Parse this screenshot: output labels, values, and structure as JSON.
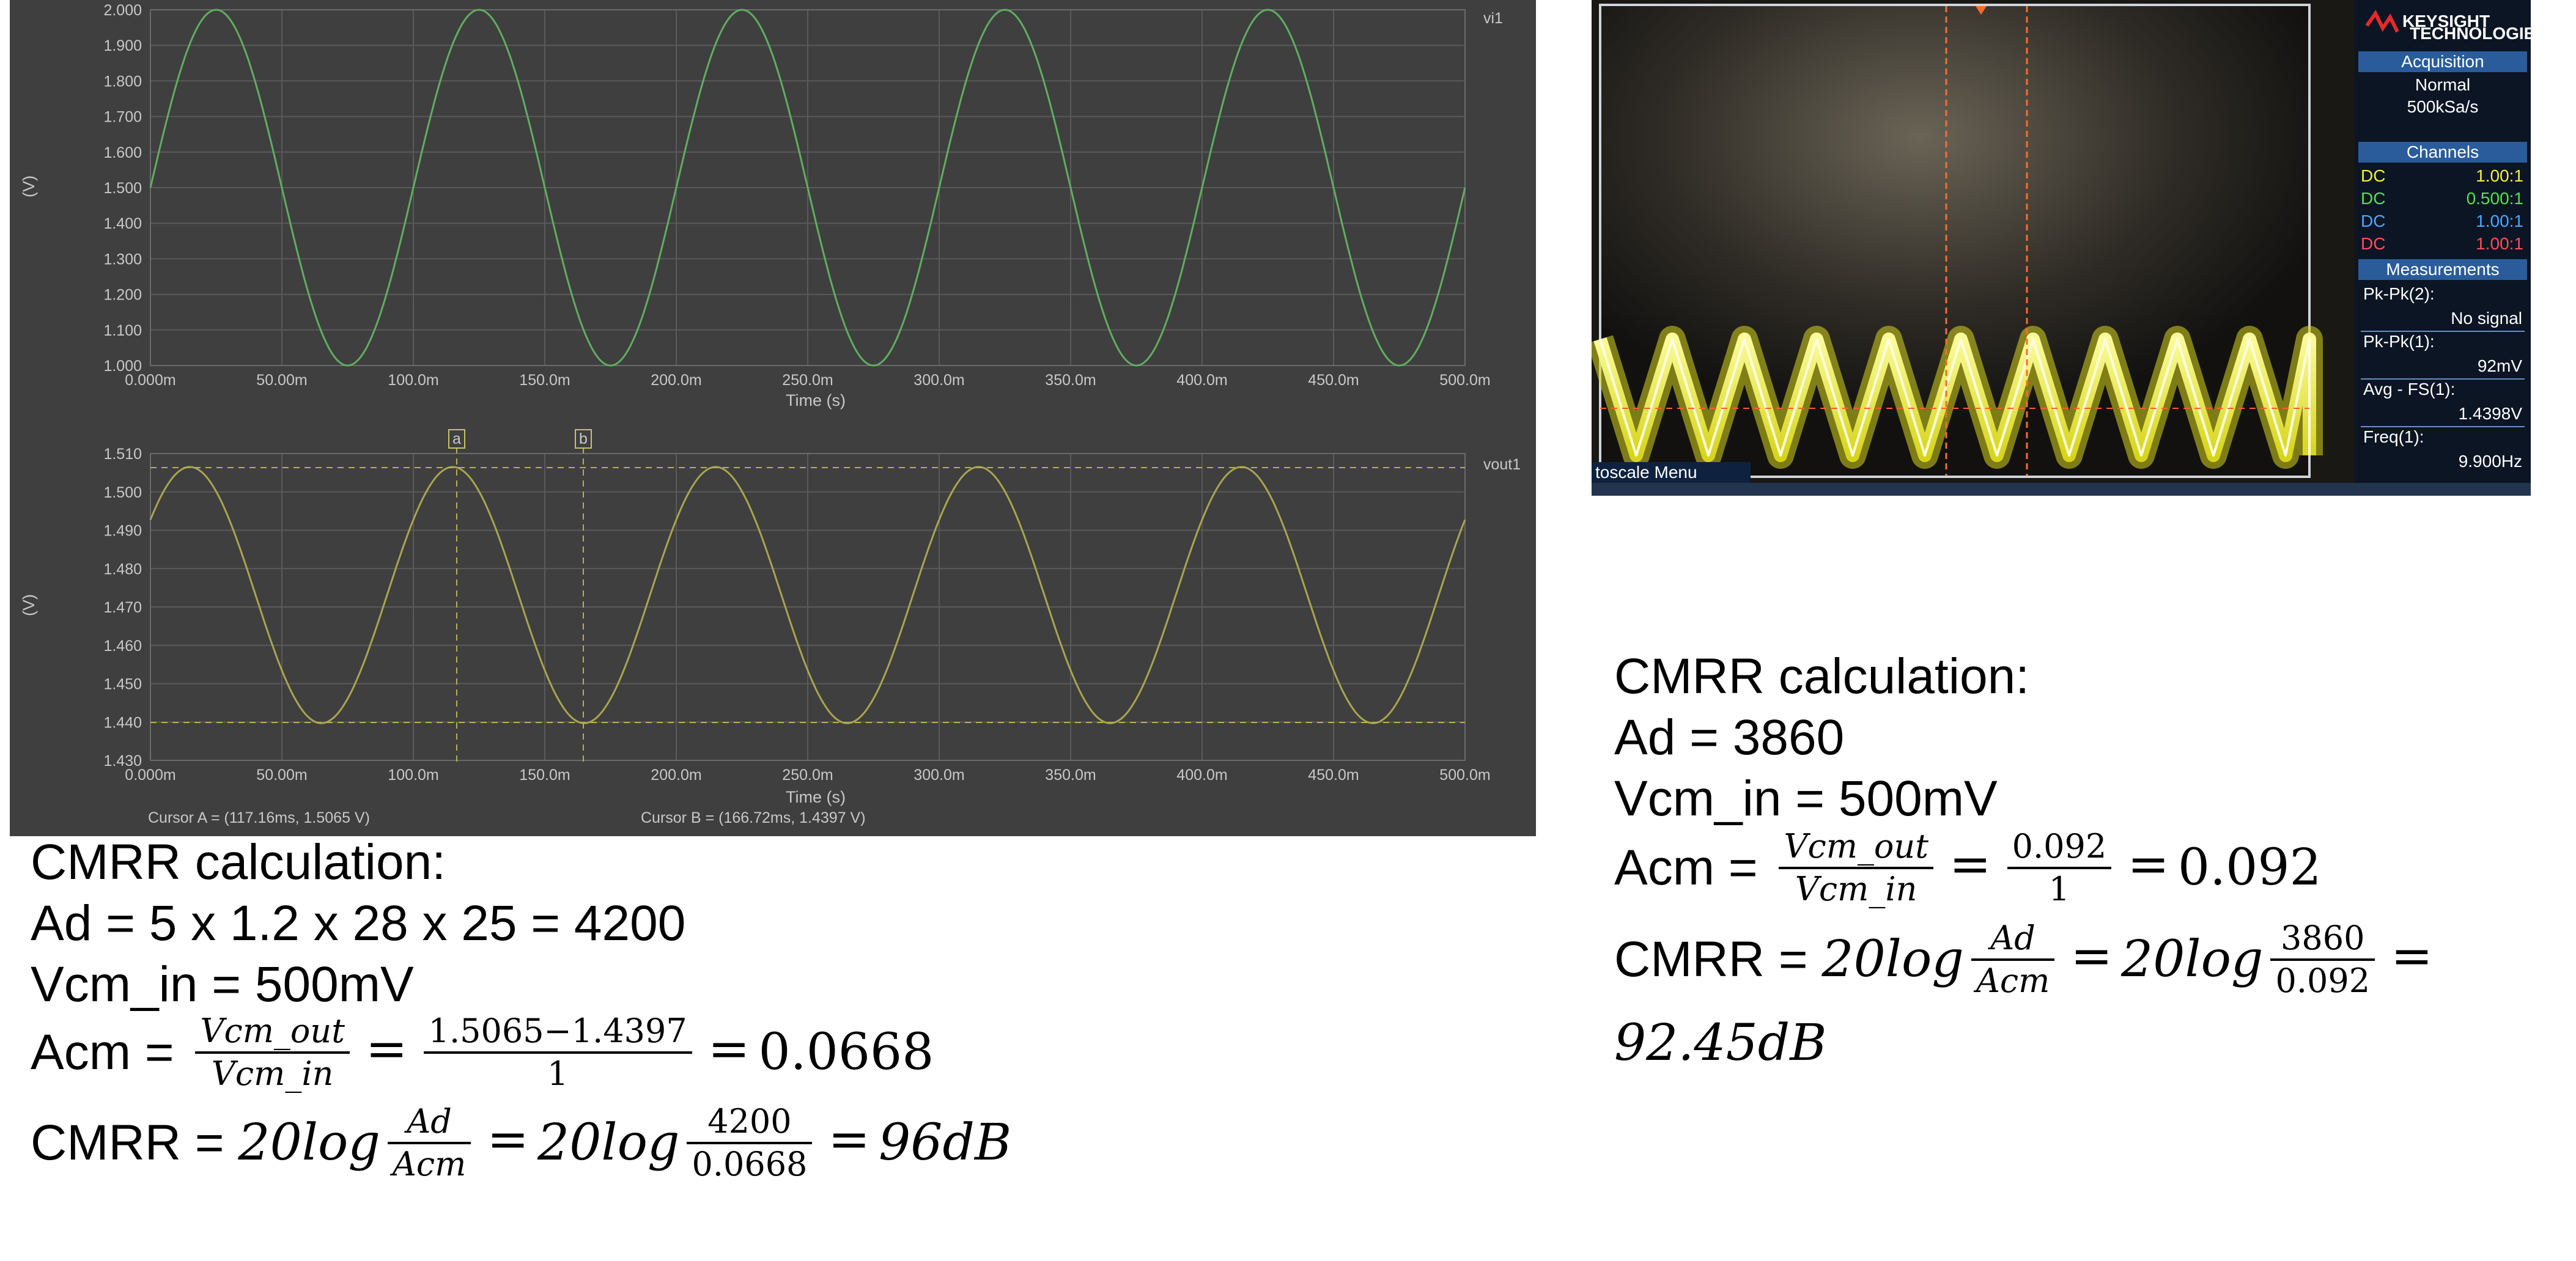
{
  "simulator": {
    "top_plot": {
      "y_axis_unit": "(V)",
      "y_ticks": [
        "2.000",
        "1.900",
        "1.800",
        "1.700",
        "1.600",
        "1.500",
        "1.400",
        "1.300",
        "1.200",
        "1.100",
        "1.000"
      ],
      "x_ticks": [
        "0.000m",
        "50.00m",
        "100.0m",
        "150.0m",
        "200.0m",
        "250.0m",
        "300.0m",
        "350.0m",
        "400.0m",
        "450.0m",
        "500.0m"
      ],
      "x_label": "Time (s)",
      "series_label": "vi1",
      "trace_color": "#5fae5f"
    },
    "bottom_plot": {
      "y_axis_unit": "(V)",
      "y_ticks": [
        "1.510",
        "1.500",
        "1.490",
        "1.480",
        "1.470",
        "1.460",
        "1.450",
        "1.440",
        "1.430"
      ],
      "x_ticks": [
        "0.000m",
        "50.00m",
        "100.0m",
        "150.0m",
        "200.0m",
        "250.0m",
        "300.0m",
        "350.0m",
        "400.0m",
        "450.0m",
        "500.0m"
      ],
      "x_label": "Time (s)",
      "series_label": "vout1",
      "trace_color": "#a9a54e",
      "cursor_a_marker": "a",
      "cursor_b_marker": "b",
      "cursor_a_readout": "Cursor A = (117.16ms, 1.5065 V)",
      "cursor_b_readout": "Cursor B = (166.72ms, 1.4397 V)"
    }
  },
  "scope": {
    "brand": "KEYSIGHT",
    "brand_sub": "TECHNOLOGIES",
    "acquisition_title": "Acquisition",
    "acquisition_mode": "Normal",
    "acquisition_rate": "500kSa/s",
    "channels_title": "Channels",
    "channels": [
      {
        "coupling": "DC",
        "ratio": "1.00:1",
        "color": "#f3ef3a"
      },
      {
        "coupling": "DC",
        "ratio": "0.500:1",
        "color": "#54e04a"
      },
      {
        "coupling": "DC",
        "ratio": "1.00:1",
        "color": "#4aa7ff"
      },
      {
        "coupling": "DC",
        "ratio": "1.00:1",
        "color": "#ff4d5a"
      }
    ],
    "measurements_title": "Measurements",
    "meas_1_label": "Pk-Pk(2):",
    "meas_1_value": "No signal",
    "meas_2_label": "Pk-Pk(1):",
    "meas_2_value": "92mV",
    "meas_3_label": "Avg - FS(1):",
    "meas_3_value": "1.4398V",
    "meas_4_label": "Freq(1):",
    "meas_4_value": "9.900Hz",
    "bottom_menu": "toscale Menu"
  },
  "calc_left": {
    "title": "CMRR calculation:",
    "ad_line": "Ad = 5 x 1.2 x 28 x 25 = 4200",
    "vcm_line": "Vcm_in = 500mV",
    "acm_prefix": "Acm = ",
    "frac1_num": "Vcm_out",
    "frac1_den": "Vcm_in",
    "eq1": "=",
    "frac2_num": "1.5065−1.4397",
    "frac2_den": "1",
    "eq2": "=",
    "acm_result": "0.0668",
    "cmrr_prefix": "CMRR = ",
    "cmrr_log1": "20log",
    "frac3_num": "Ad",
    "frac3_den": "Acm",
    "eq3": "=",
    "cmrr_log2": "20log",
    "frac4_num": "4200",
    "frac4_den": "0.0668",
    "eq4": "=",
    "cmrr_result": "96dB"
  },
  "calc_right": {
    "title": "CMRR calculation:",
    "ad_line": "Ad = 3860",
    "vcm_line": "Vcm_in = 500mV",
    "acm_prefix": "Acm = ",
    "frac1_num": "Vcm_out",
    "frac1_den": "Vcm_in",
    "eq1": "=",
    "frac2_num": "0.092",
    "frac2_den": "1",
    "eq2": "=",
    "acm_result": "0.092",
    "cmrr_prefix": "CMRR = ",
    "cmrr_log1": "20log",
    "frac3_num": "Ad",
    "frac3_den": "Acm",
    "eq3": "=",
    "cmrr_log2": "20log",
    "frac4_num": "3860",
    "frac4_den": "0.092",
    "eq4": "=",
    "cmrr_result": "92.45dB"
  }
}
